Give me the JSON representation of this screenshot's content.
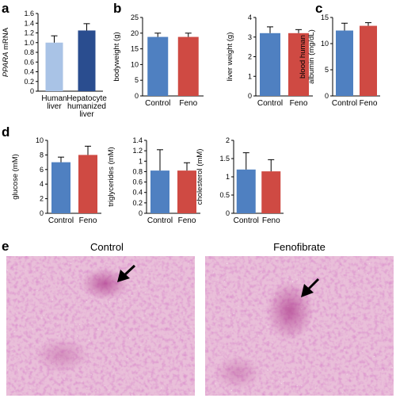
{
  "panels": {
    "a": "a",
    "b": "b",
    "c": "c",
    "d": "d",
    "e": "e"
  },
  "colors": {
    "human_liver": "#a9c3e6",
    "hepatocyte_humanized": "#2a4d8f",
    "control": "#4f80c1",
    "feno": "#cf4a43",
    "tissue": "#e7b8d6",
    "tissue_dark": "#b64f9a",
    "arrow": "#000000"
  },
  "chart_data": [
    {
      "id": "a",
      "type": "bar",
      "ylabel_italic": "PPARA",
      "ylabel_rest": " mRNA",
      "ylim": [
        0,
        1.6
      ],
      "yticks": [
        "0",
        "0.2",
        "0.4",
        "0.6",
        "0.8",
        "1.0",
        "1.2",
        "1.4",
        "1.6"
      ],
      "categories": [
        [
          "Human",
          "liver"
        ],
        [
          "Hepatocyte",
          "humanized",
          "liver"
        ]
      ],
      "values": [
        1.0,
        1.25
      ],
      "errors": [
        0.14,
        0.14
      ],
      "colors": [
        "#a9c3e6",
        "#2a4d8f"
      ]
    },
    {
      "id": "b1",
      "type": "bar",
      "ylabel": "bodyweight (g)",
      "ylim": [
        0,
        25
      ],
      "yticks": [
        "0",
        "5",
        "10",
        "15",
        "20",
        "25"
      ],
      "categories": [
        [
          "Control"
        ],
        [
          "Feno"
        ]
      ],
      "values": [
        18.8,
        18.8
      ],
      "errors": [
        1.2,
        1.2
      ],
      "colors": [
        "#4f80c1",
        "#cf4a43"
      ]
    },
    {
      "id": "b2",
      "type": "bar",
      "ylabel": "liver weight (g)",
      "ylim": [
        0,
        4
      ],
      "yticks": [
        "0",
        "1",
        "2",
        "3",
        "4"
      ],
      "categories": [
        [
          "Control"
        ],
        [
          "Feno"
        ]
      ],
      "values": [
        3.2,
        3.2
      ],
      "errors": [
        0.32,
        0.18
      ],
      "colors": [
        "#4f80c1",
        "#cf4a43"
      ]
    },
    {
      "id": "c",
      "type": "bar",
      "ylabel_lines": [
        "blood human",
        "albumin (mg/dL)"
      ],
      "ylim": [
        0,
        15
      ],
      "yticks": [
        "0",
        "5",
        "10",
        "15"
      ],
      "categories": [
        [
          "Control"
        ],
        [
          "Feno"
        ]
      ],
      "values": [
        12.5,
        13.4
      ],
      "errors": [
        1.4,
        0.6
      ],
      "colors": [
        "#4f80c1",
        "#cf4a43"
      ]
    },
    {
      "id": "d1",
      "type": "bar",
      "ylabel": "glucose (mM)",
      "ylim": [
        0,
        10
      ],
      "yticks": [
        "0",
        "2",
        "4",
        "6",
        "8",
        "10"
      ],
      "categories": [
        [
          "Control"
        ],
        [
          "Feno"
        ]
      ],
      "values": [
        7.0,
        8.0
      ],
      "errors": [
        0.7,
        1.2
      ],
      "colors": [
        "#4f80c1",
        "#cf4a43"
      ]
    },
    {
      "id": "d2",
      "type": "bar",
      "ylabel": "triglycerides (mM)",
      "ylim": [
        0,
        1.4
      ],
      "yticks": [
        "0",
        "0.2",
        "0.4",
        "0.6",
        "0.8",
        "1",
        "1.2",
        "1.4"
      ],
      "categories": [
        [
          "Control"
        ],
        [
          "Feno"
        ]
      ],
      "values": [
        0.82,
        0.82
      ],
      "errors": [
        0.4,
        0.15
      ],
      "colors": [
        "#4f80c1",
        "#cf4a43"
      ]
    },
    {
      "id": "d3",
      "type": "bar",
      "ylabel": "cholesterol (mM)",
      "ylim": [
        0,
        2
      ],
      "yticks": [
        "0",
        "0.5",
        "1",
        "1.5",
        "2"
      ],
      "categories": [
        [
          "Control"
        ],
        [
          "Feno"
        ]
      ],
      "values": [
        1.2,
        1.15
      ],
      "errors": [
        0.46,
        0.32
      ],
      "colors": [
        "#4f80c1",
        "#cf4a43"
      ]
    }
  ],
  "micrographs": [
    {
      "title": "Control"
    },
    {
      "title": "Fenofibrate"
    }
  ]
}
